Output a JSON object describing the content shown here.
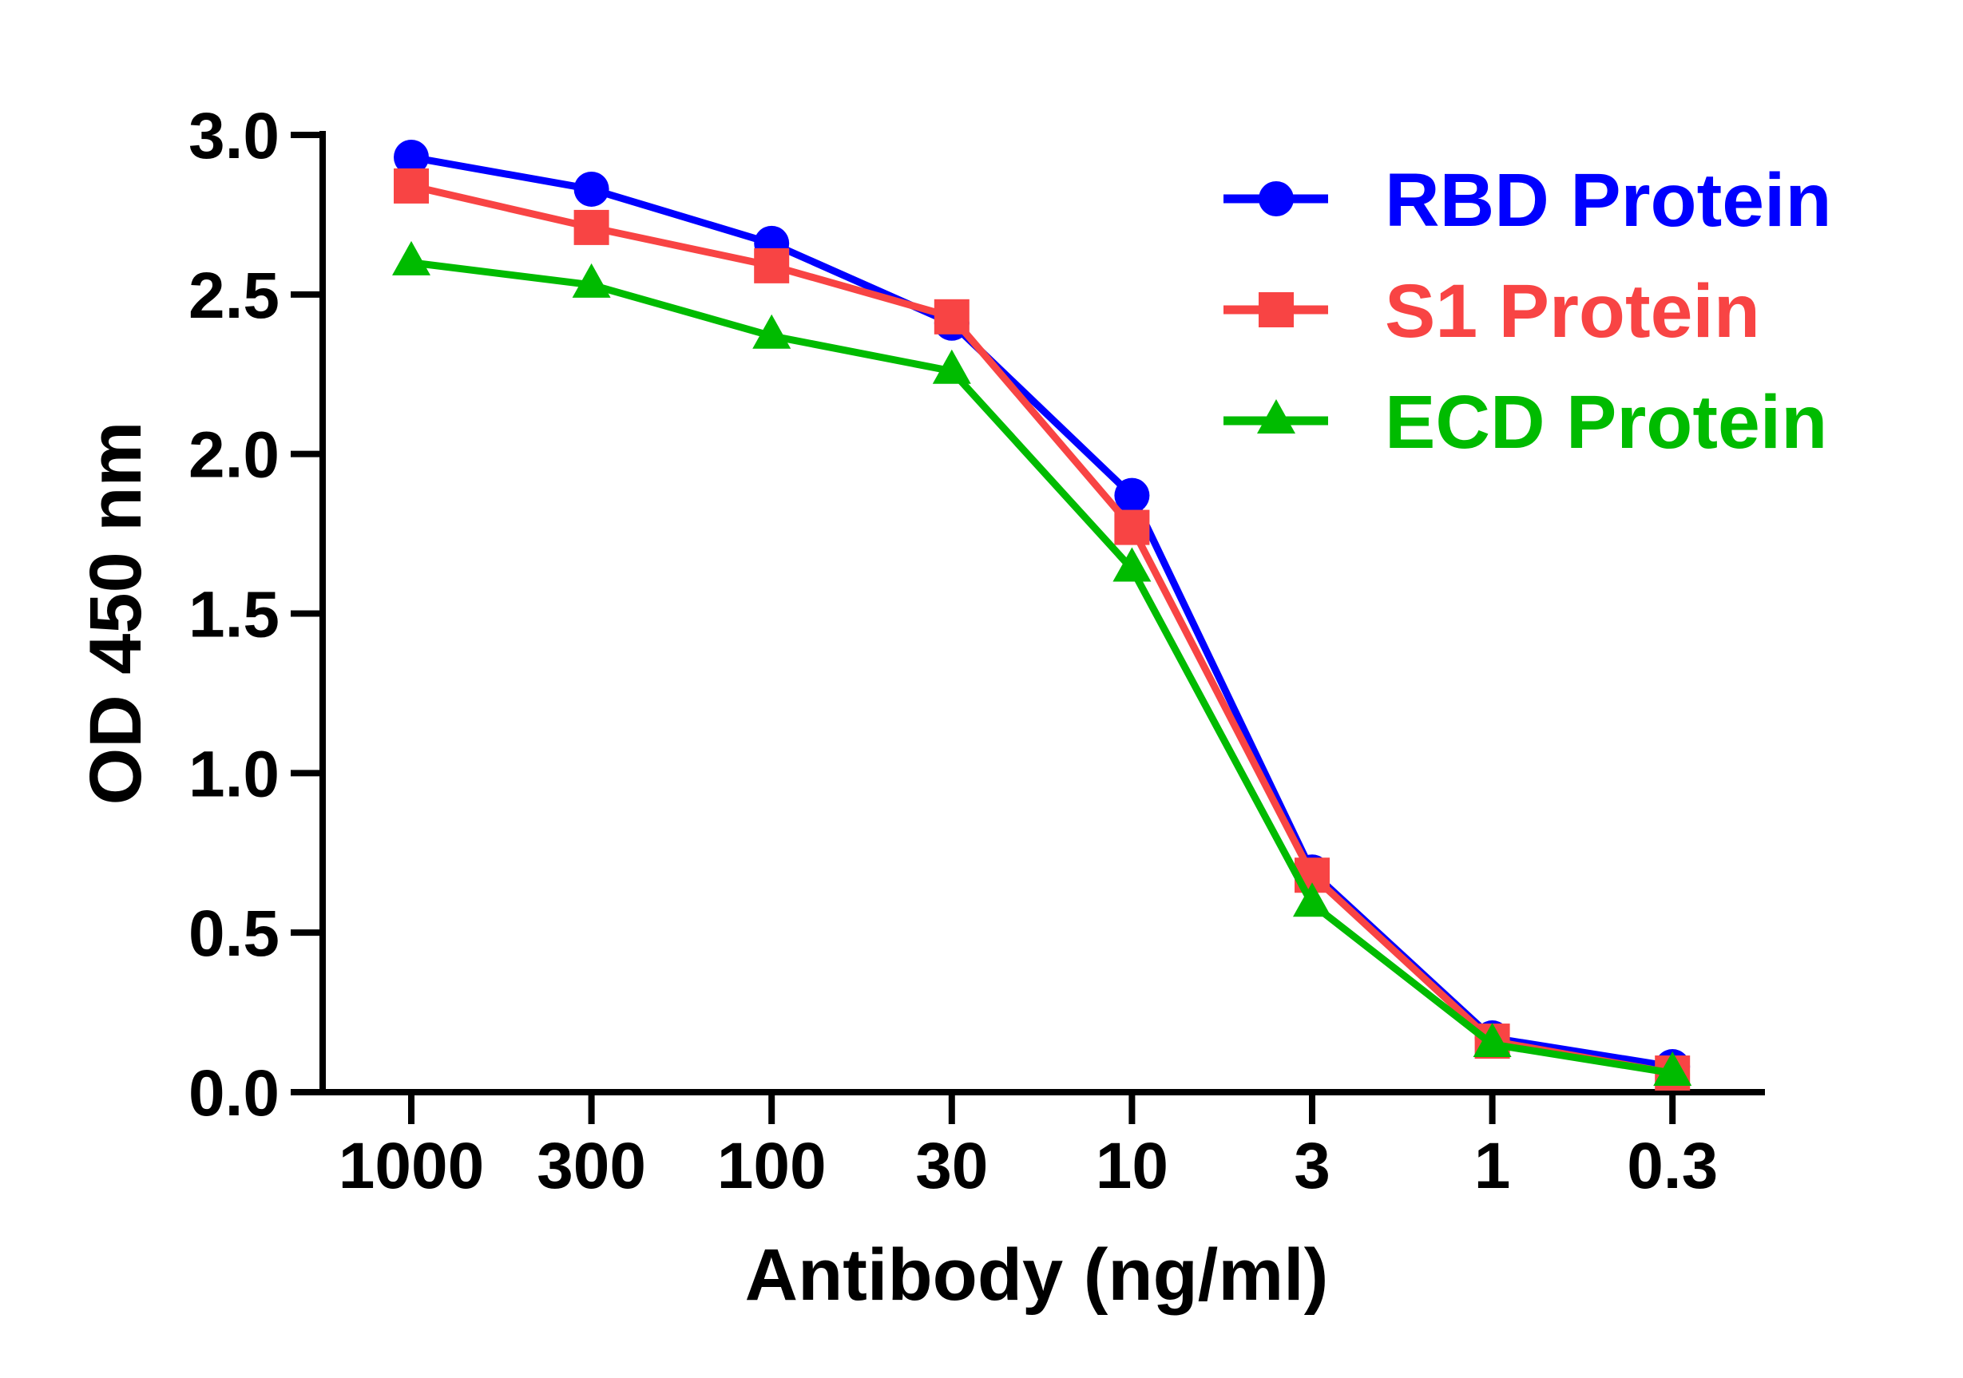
{
  "chart_data": {
    "type": "line",
    "title": "",
    "xlabel": "Antibody (ng/ml)",
    "ylabel": "OD 450 nm",
    "categories": [
      "1000",
      "300",
      "100",
      "30",
      "10",
      "3",
      "1",
      "0.3"
    ],
    "ylim": [
      0,
      3.0
    ],
    "yticks": [
      "0.0",
      "0.5",
      "1.0",
      "1.5",
      "2.0",
      "2.5",
      "3.0"
    ],
    "grid": false,
    "legend_position": "top-right",
    "series": [
      {
        "name": "RBD Protein",
        "color": "#0000FF",
        "marker": "circle",
        "values": [
          2.93,
          2.83,
          2.66,
          2.41,
          1.87,
          0.69,
          0.17,
          0.08
        ]
      },
      {
        "name": "S1 Protein",
        "color": "#F84444",
        "marker": "square",
        "values": [
          2.84,
          2.71,
          2.59,
          2.43,
          1.77,
          0.68,
          0.16,
          0.06
        ]
      },
      {
        "name": "ECD Protein",
        "color": "#00BB00",
        "marker": "triangle",
        "values": [
          2.6,
          2.53,
          2.37,
          2.26,
          1.64,
          0.59,
          0.15,
          0.06
        ]
      }
    ]
  }
}
